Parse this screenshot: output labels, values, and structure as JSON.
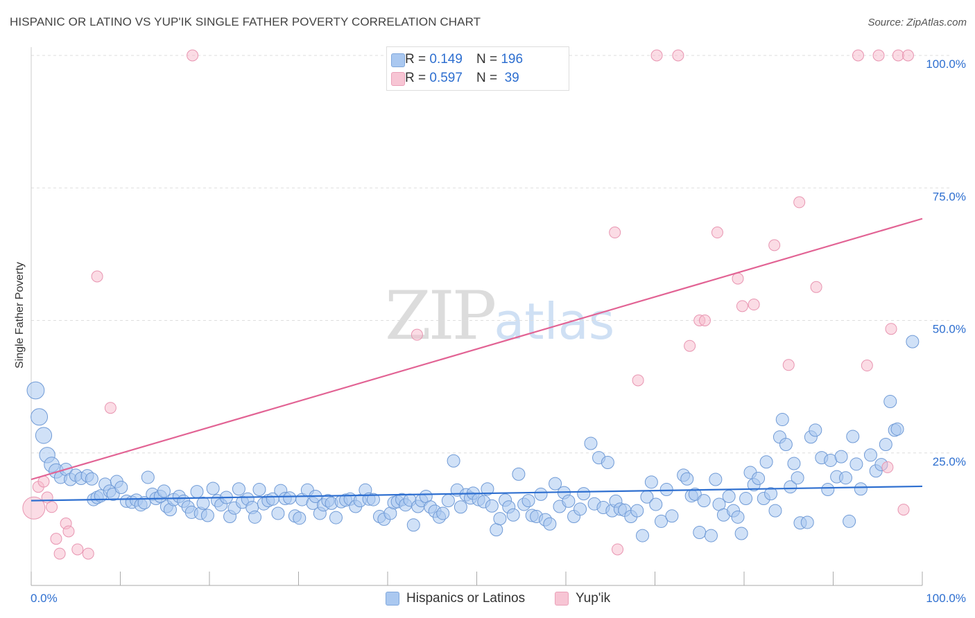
{
  "title": "HISPANIC OR LATINO VS YUP'IK SINGLE FATHER POVERTY CORRELATION CHART",
  "source": "Source: ZipAtlas.com",
  "watermark": {
    "zip": "ZIP",
    "atlas": "atlas"
  },
  "colors": {
    "blue": "#2e6fd0",
    "blue_fill": "#aac8f0",
    "pink": "#e26394",
    "pink_fill": "#f7b9cb"
  },
  "legend_top": [
    {
      "r_label": "R = ",
      "r_value": "0.149",
      "n_label": "N = ",
      "n_value": "196"
    },
    {
      "r_label": "R = ",
      "r_value": "0.597",
      "n_label": "N = ",
      "n_value": " 39"
    }
  ],
  "legend_bottom": [
    "Hispanics or Latinos",
    "Yup'ik"
  ],
  "chart_data": {
    "type": "scatter",
    "title": "HISPANIC OR LATINO VS YUP'IK SINGLE FATHER POVERTY CORRELATION CHART",
    "xlabel": "",
    "ylabel": "Single Father Poverty",
    "xlim": [
      0,
      100
    ],
    "ylim": [
      0,
      100
    ],
    "x_tick_labels": [
      "0.0%",
      "100.0%"
    ],
    "y_tick_labels": [
      "25.0%",
      "50.0%",
      "75.0%",
      "100.0%"
    ],
    "y_ticks": [
      25,
      50,
      75,
      100
    ],
    "grid": true,
    "legend": "top-center",
    "series": [
      {
        "name": "Hispanics or Latinos",
        "R": 0.149,
        "N": 196,
        "trend": [
          [
            0,
            16.0
          ],
          [
            100,
            18.7
          ]
        ],
        "points": [
          [
            0.5,
            36.8
          ],
          [
            0.9,
            31.8
          ],
          [
            1.4,
            28.3
          ],
          [
            1.8,
            24.6
          ],
          [
            2.3,
            22.8
          ],
          [
            2.8,
            21.6
          ],
          [
            3.3,
            20.4
          ],
          [
            3.9,
            21.9
          ],
          [
            4.4,
            20.0
          ],
          [
            5.0,
            20.8
          ],
          [
            5.6,
            20.2
          ],
          [
            6.3,
            20.7
          ],
          [
            6.8,
            20.1
          ],
          [
            7.0,
            16.2
          ],
          [
            7.4,
            16.6
          ],
          [
            7.8,
            16.9
          ],
          [
            8.3,
            19.1
          ],
          [
            8.8,
            17.8
          ],
          [
            9.2,
            17.2
          ],
          [
            9.6,
            19.6
          ],
          [
            10.1,
            18.5
          ],
          [
            10.7,
            15.9
          ],
          [
            11.3,
            15.7
          ],
          [
            11.8,
            16.1
          ],
          [
            12.3,
            15.2
          ],
          [
            12.7,
            15.6
          ],
          [
            13.1,
            20.4
          ],
          [
            13.6,
            17.2
          ],
          [
            14.0,
            16.4
          ],
          [
            14.5,
            16.8
          ],
          [
            14.9,
            17.8
          ],
          [
            15.2,
            14.9
          ],
          [
            15.6,
            14.3
          ],
          [
            16.0,
            16.2
          ],
          [
            16.6,
            16.8
          ],
          [
            17.1,
            15.9
          ],
          [
            17.6,
            14.8
          ],
          [
            18.0,
            13.8
          ],
          [
            18.6,
            17.7
          ],
          [
            19.0,
            13.6
          ],
          [
            19.3,
            15.5
          ],
          [
            19.8,
            13.2
          ],
          [
            20.4,
            18.3
          ],
          [
            20.9,
            16.0
          ],
          [
            21.3,
            15.2
          ],
          [
            21.9,
            16.6
          ],
          [
            22.3,
            13.0
          ],
          [
            22.8,
            14.6
          ],
          [
            23.3,
            18.2
          ],
          [
            23.7,
            15.7
          ],
          [
            24.3,
            16.3
          ],
          [
            24.8,
            14.7
          ],
          [
            25.1,
            12.9
          ],
          [
            25.6,
            18.1
          ],
          [
            26.1,
            15.4
          ],
          [
            26.6,
            16.0
          ],
          [
            27.1,
            16.3
          ],
          [
            27.7,
            13.6
          ],
          [
            28.0,
            17.9
          ],
          [
            28.5,
            16.4
          ],
          [
            29.0,
            16.5
          ],
          [
            29.6,
            13.1
          ],
          [
            30.1,
            12.7
          ],
          [
            30.4,
            16.2
          ],
          [
            31.0,
            18.0
          ],
          [
            31.6,
            15.5
          ],
          [
            31.9,
            16.8
          ],
          [
            32.4,
            13.6
          ],
          [
            32.8,
            15.2
          ],
          [
            33.3,
            16.0
          ],
          [
            33.7,
            15.5
          ],
          [
            34.2,
            12.8
          ],
          [
            34.8,
            15.8
          ],
          [
            35.3,
            16.1
          ],
          [
            35.8,
            16.3
          ],
          [
            36.4,
            14.9
          ],
          [
            36.9,
            16.0
          ],
          [
            37.5,
            18.0
          ],
          [
            37.9,
            16.3
          ],
          [
            38.4,
            16.2
          ],
          [
            39.1,
            13.0
          ],
          [
            39.6,
            12.5
          ],
          [
            40.3,
            13.6
          ],
          [
            40.7,
            15.6
          ],
          [
            41.1,
            15.8
          ],
          [
            41.6,
            16.2
          ],
          [
            42.0,
            15.2
          ],
          [
            42.5,
            16.1
          ],
          [
            42.9,
            11.4
          ],
          [
            43.4,
            14.9
          ],
          [
            43.8,
            16.0
          ],
          [
            44.3,
            16.8
          ],
          [
            44.8,
            14.8
          ],
          [
            45.3,
            14.0
          ],
          [
            45.8,
            12.9
          ],
          [
            46.2,
            13.6
          ],
          [
            46.8,
            16.0
          ],
          [
            47.4,
            23.5
          ],
          [
            47.8,
            18.0
          ],
          [
            48.2,
            14.8
          ],
          [
            48.8,
            17.1
          ],
          [
            49.3,
            16.5
          ],
          [
            49.6,
            17.4
          ],
          [
            50.2,
            16.2
          ],
          [
            50.8,
            15.8
          ],
          [
            51.2,
            18.2
          ],
          [
            51.7,
            15.0
          ],
          [
            52.2,
            10.5
          ],
          [
            52.6,
            12.6
          ],
          [
            53.2,
            16.1
          ],
          [
            53.6,
            14.8
          ],
          [
            54.1,
            13.3
          ],
          [
            54.7,
            21.0
          ],
          [
            55.3,
            15.3
          ],
          [
            55.8,
            16.0
          ],
          [
            56.2,
            13.2
          ],
          [
            56.7,
            13.0
          ],
          [
            57.2,
            17.2
          ],
          [
            57.7,
            12.4
          ],
          [
            58.2,
            11.6
          ],
          [
            58.8,
            19.2
          ],
          [
            59.3,
            14.9
          ],
          [
            59.8,
            17.5
          ],
          [
            60.3,
            15.9
          ],
          [
            60.9,
            13.0
          ],
          [
            61.6,
            14.4
          ],
          [
            62.0,
            17.3
          ],
          [
            62.8,
            26.8
          ],
          [
            63.2,
            15.4
          ],
          [
            63.7,
            24.1
          ],
          [
            64.2,
            14.7
          ],
          [
            64.7,
            23.2
          ],
          [
            65.2,
            14.1
          ],
          [
            65.6,
            15.9
          ],
          [
            66.1,
            14.4
          ],
          [
            66.6,
            14.2
          ],
          [
            67.3,
            13.0
          ],
          [
            68.0,
            14.1
          ],
          [
            68.6,
            9.4
          ],
          [
            69.1,
            16.7
          ],
          [
            69.6,
            19.5
          ],
          [
            70.1,
            15.3
          ],
          [
            70.7,
            12.1
          ],
          [
            71.3,
            18.1
          ],
          [
            71.9,
            13.1
          ],
          [
            73.2,
            20.8
          ],
          [
            73.6,
            20.1
          ],
          [
            74.1,
            16.9
          ],
          [
            74.5,
            17.2
          ],
          [
            75.0,
            10.0
          ],
          [
            75.5,
            16.0
          ],
          [
            76.3,
            9.4
          ],
          [
            76.8,
            20.0
          ],
          [
            77.2,
            15.3
          ],
          [
            77.7,
            13.3
          ],
          [
            78.3,
            16.8
          ],
          [
            78.8,
            14.1
          ],
          [
            79.3,
            12.9
          ],
          [
            79.7,
            9.8
          ],
          [
            80.2,
            16.4
          ],
          [
            80.7,
            21.3
          ],
          [
            81.1,
            19.0
          ],
          [
            81.6,
            20.2
          ],
          [
            82.2,
            16.4
          ],
          [
            82.5,
            23.3
          ],
          [
            83.0,
            17.3
          ],
          [
            83.5,
            14.1
          ],
          [
            84.0,
            28.0
          ],
          [
            84.3,
            31.3
          ],
          [
            84.7,
            26.6
          ],
          [
            85.2,
            18.6
          ],
          [
            85.6,
            23.0
          ],
          [
            86.0,
            20.3
          ],
          [
            86.3,
            11.8
          ],
          [
            87.1,
            11.9
          ],
          [
            87.5,
            28.0
          ],
          [
            88.0,
            29.3
          ],
          [
            88.7,
            24.1
          ],
          [
            89.4,
            18.1
          ],
          [
            89.7,
            23.6
          ],
          [
            90.4,
            20.5
          ],
          [
            90.9,
            24.3
          ],
          [
            91.4,
            20.3
          ],
          [
            91.8,
            12.1
          ],
          [
            92.2,
            28.1
          ],
          [
            92.6,
            22.9
          ],
          [
            93.1,
            18.2
          ],
          [
            94.2,
            24.6
          ],
          [
            94.8,
            21.6
          ],
          [
            95.4,
            22.8
          ],
          [
            95.9,
            26.6
          ],
          [
            96.4,
            34.7
          ],
          [
            96.9,
            29.3
          ],
          [
            97.2,
            29.5
          ],
          [
            98.9,
            46.0
          ]
        ]
      },
      {
        "name": "Yup'ik",
        "R": 0.597,
        "N": 39,
        "trend": [
          [
            0,
            20.0
          ],
          [
            100,
            69.2
          ]
        ],
        "points": [
          [
            0.3,
            14.6
          ],
          [
            0.8,
            18.6
          ],
          [
            1.4,
            19.6
          ],
          [
            1.8,
            16.6
          ],
          [
            2.3,
            14.8
          ],
          [
            2.8,
            8.8
          ],
          [
            3.2,
            6.0
          ],
          [
            3.9,
            11.7
          ],
          [
            4.2,
            10.2
          ],
          [
            5.2,
            6.8
          ],
          [
            6.4,
            6.0
          ],
          [
            7.4,
            58.3
          ],
          [
            8.9,
            33.5
          ],
          [
            18.1,
            100
          ],
          [
            65.5,
            66.6
          ],
          [
            65.8,
            6.8
          ],
          [
            68.1,
            38.7
          ],
          [
            70.2,
            100
          ],
          [
            72.6,
            100
          ],
          [
            73.9,
            45.2
          ],
          [
            75.0,
            50.0
          ],
          [
            75.6,
            50.0
          ],
          [
            77.0,
            66.6
          ],
          [
            79.3,
            57.9
          ],
          [
            79.8,
            52.7
          ],
          [
            81.1,
            53.0
          ],
          [
            83.4,
            64.2
          ],
          [
            85.0,
            41.6
          ],
          [
            86.2,
            72.3
          ],
          [
            88.1,
            56.3
          ],
          [
            92.8,
            100
          ],
          [
            93.8,
            41.5
          ],
          [
            95.1,
            100
          ],
          [
            96.1,
            22.3
          ],
          [
            96.5,
            48.4
          ],
          [
            97.3,
            100
          ],
          [
            97.9,
            14.3
          ],
          [
            98.4,
            100
          ],
          [
            43.3,
            47.3
          ]
        ]
      }
    ]
  }
}
